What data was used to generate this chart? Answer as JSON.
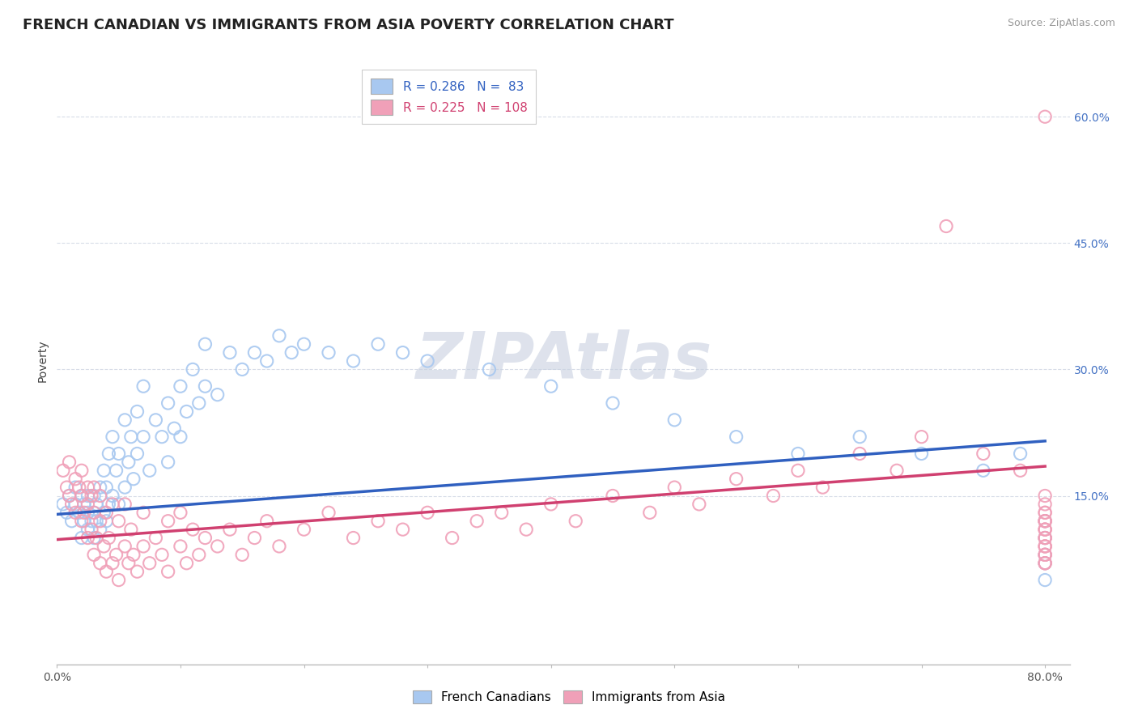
{
  "title": "FRENCH CANADIAN VS IMMIGRANTS FROM ASIA POVERTY CORRELATION CHART",
  "source_text": "Source: ZipAtlas.com",
  "ylabel": "Poverty",
  "xlim": [
    0.0,
    0.82
  ],
  "ylim": [
    -0.05,
    0.67
  ],
  "xticks": [
    0.0,
    0.1,
    0.2,
    0.3,
    0.4,
    0.5,
    0.6,
    0.7,
    0.8
  ],
  "xticklabels": [
    "0.0%",
    "",
    "",
    "",
    "",
    "",
    "",
    "",
    "80.0%"
  ],
  "yticks_right": [
    0.15,
    0.3,
    0.45,
    0.6
  ],
  "ytick_right_labels": [
    "15.0%",
    "30.0%",
    "45.0%",
    "60.0%"
  ],
  "blue_R": 0.286,
  "blue_N": 83,
  "pink_R": 0.225,
  "pink_N": 108,
  "blue_color": "#a8c8f0",
  "pink_color": "#f0a0b8",
  "blue_line_color": "#3060c0",
  "pink_line_color": "#d04070",
  "watermark": "ZIPAtlas",
  "watermark_color": "#c8d0e0",
  "legend_label_blue": "French Canadians",
  "legend_label_pink": "Immigrants from Asia",
  "blue_scatter_x": [
    0.005,
    0.008,
    0.01,
    0.012,
    0.015,
    0.015,
    0.018,
    0.02,
    0.02,
    0.022,
    0.022,
    0.025,
    0.025,
    0.025,
    0.028,
    0.03,
    0.03,
    0.03,
    0.032,
    0.032,
    0.035,
    0.035,
    0.038,
    0.038,
    0.04,
    0.04,
    0.042,
    0.042,
    0.045,
    0.045,
    0.048,
    0.05,
    0.05,
    0.055,
    0.055,
    0.058,
    0.06,
    0.062,
    0.065,
    0.065,
    0.07,
    0.07,
    0.075,
    0.08,
    0.085,
    0.09,
    0.09,
    0.095,
    0.1,
    0.1,
    0.105,
    0.11,
    0.115,
    0.12,
    0.12,
    0.13,
    0.14,
    0.15,
    0.16,
    0.17,
    0.18,
    0.19,
    0.2,
    0.22,
    0.24,
    0.26,
    0.28,
    0.3,
    0.35,
    0.4,
    0.45,
    0.5,
    0.55,
    0.6,
    0.65,
    0.7,
    0.75,
    0.78,
    0.8,
    0.8,
    0.8,
    0.8,
    0.8
  ],
  "blue_scatter_y": [
    0.14,
    0.13,
    0.15,
    0.12,
    0.14,
    0.16,
    0.13,
    0.1,
    0.15,
    0.12,
    0.14,
    0.11,
    0.13,
    0.15,
    0.12,
    0.1,
    0.13,
    0.15,
    0.12,
    0.14,
    0.11,
    0.16,
    0.13,
    0.18,
    0.12,
    0.16,
    0.14,
    0.2,
    0.15,
    0.22,
    0.18,
    0.14,
    0.2,
    0.16,
    0.24,
    0.19,
    0.22,
    0.17,
    0.25,
    0.2,
    0.22,
    0.28,
    0.18,
    0.24,
    0.22,
    0.19,
    0.26,
    0.23,
    0.22,
    0.28,
    0.25,
    0.3,
    0.26,
    0.28,
    0.33,
    0.27,
    0.32,
    0.3,
    0.32,
    0.31,
    0.34,
    0.32,
    0.33,
    0.32,
    0.31,
    0.33,
    0.32,
    0.31,
    0.3,
    0.28,
    0.26,
    0.24,
    0.22,
    0.2,
    0.22,
    0.2,
    0.18,
    0.2,
    0.08,
    0.1,
    0.12,
    0.05,
    0.07
  ],
  "pink_scatter_x": [
    0.005,
    0.008,
    0.01,
    0.01,
    0.012,
    0.015,
    0.015,
    0.018,
    0.02,
    0.02,
    0.02,
    0.022,
    0.025,
    0.025,
    0.025,
    0.028,
    0.028,
    0.03,
    0.03,
    0.03,
    0.032,
    0.035,
    0.035,
    0.035,
    0.038,
    0.04,
    0.04,
    0.042,
    0.045,
    0.045,
    0.048,
    0.05,
    0.05,
    0.055,
    0.055,
    0.058,
    0.06,
    0.062,
    0.065,
    0.07,
    0.07,
    0.075,
    0.08,
    0.085,
    0.09,
    0.09,
    0.1,
    0.1,
    0.105,
    0.11,
    0.115,
    0.12,
    0.13,
    0.14,
    0.15,
    0.16,
    0.17,
    0.18,
    0.2,
    0.22,
    0.24,
    0.26,
    0.28,
    0.3,
    0.32,
    0.34,
    0.36,
    0.38,
    0.4,
    0.42,
    0.45,
    0.48,
    0.5,
    0.52,
    0.55,
    0.58,
    0.6,
    0.62,
    0.65,
    0.68,
    0.7,
    0.72,
    0.75,
    0.78,
    0.8,
    0.8,
    0.8,
    0.8,
    0.8,
    0.8,
    0.8,
    0.8,
    0.8,
    0.8,
    0.8,
    0.8,
    0.8,
    0.8,
    0.8,
    0.8,
    0.8,
    0.8,
    0.8,
    0.8,
    0.8,
    0.8,
    0.8,
    0.8
  ],
  "pink_scatter_y": [
    0.18,
    0.16,
    0.15,
    0.19,
    0.14,
    0.17,
    0.13,
    0.16,
    0.12,
    0.15,
    0.18,
    0.13,
    0.1,
    0.14,
    0.16,
    0.11,
    0.15,
    0.08,
    0.13,
    0.16,
    0.1,
    0.07,
    0.12,
    0.15,
    0.09,
    0.06,
    0.13,
    0.1,
    0.07,
    0.14,
    0.08,
    0.05,
    0.12,
    0.09,
    0.14,
    0.07,
    0.11,
    0.08,
    0.06,
    0.09,
    0.13,
    0.07,
    0.1,
    0.08,
    0.06,
    0.12,
    0.09,
    0.13,
    0.07,
    0.11,
    0.08,
    0.1,
    0.09,
    0.11,
    0.08,
    0.1,
    0.12,
    0.09,
    0.11,
    0.13,
    0.1,
    0.12,
    0.11,
    0.13,
    0.1,
    0.12,
    0.13,
    0.11,
    0.14,
    0.12,
    0.15,
    0.13,
    0.16,
    0.14,
    0.17,
    0.15,
    0.18,
    0.16,
    0.2,
    0.18,
    0.22,
    0.47,
    0.2,
    0.18,
    0.08,
    0.1,
    0.12,
    0.15,
    0.13,
    0.11,
    0.09,
    0.07,
    0.12,
    0.1,
    0.08,
    0.14,
    0.11,
    0.09,
    0.07,
    0.12,
    0.1,
    0.6,
    0.08,
    0.13,
    0.11,
    0.09,
    0.07,
    0.12
  ],
  "blue_trend_x": [
    0.0,
    0.8
  ],
  "blue_trend_y": [
    0.128,
    0.215
  ],
  "pink_trend_x": [
    0.0,
    0.8
  ],
  "pink_trend_y": [
    0.098,
    0.185
  ],
  "grid_color": "#d8dde8",
  "bg_color": "#ffffff",
  "title_fontsize": 13,
  "axis_label_fontsize": 10,
  "tick_fontsize": 10
}
